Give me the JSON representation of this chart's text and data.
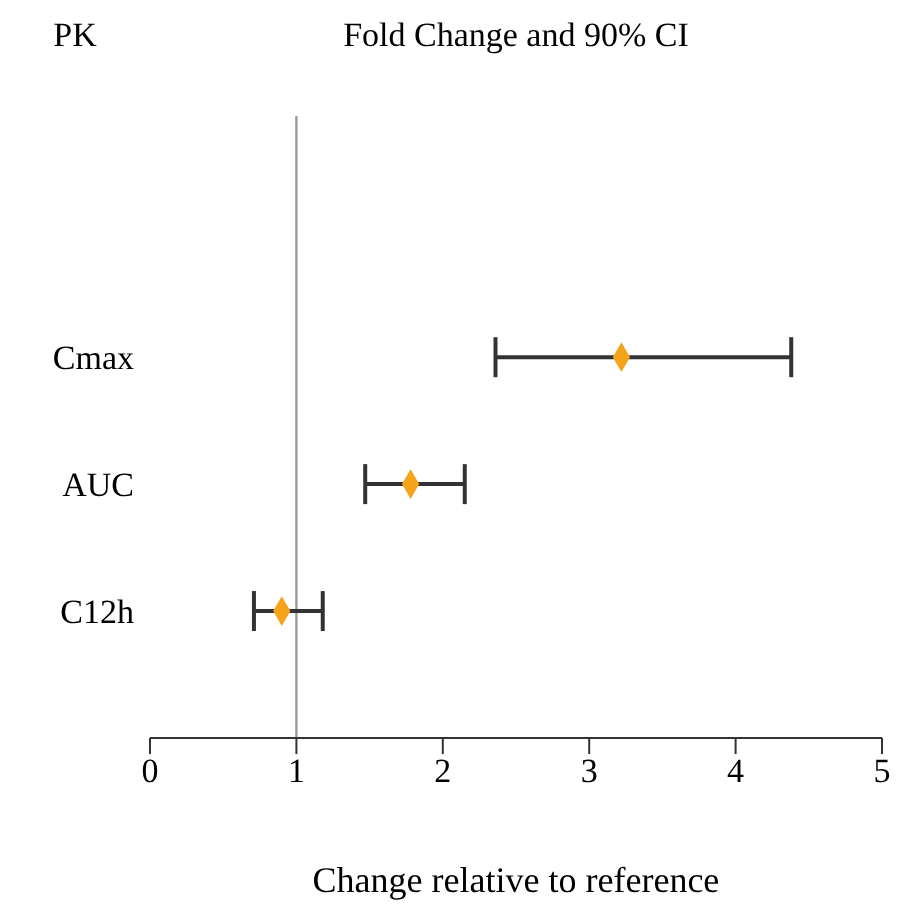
{
  "chart_data": {
    "type": "scatter",
    "title": "Fold Change and 90% CI",
    "annotations": [
      "PK"
    ],
    "xlabel": "Change relative to reference",
    "orientation": "horizontal",
    "categories": [
      "Cmax",
      "AUC",
      "C12h"
    ],
    "series": [
      {
        "color": "#f5a31a",
        "values": [
          3.22,
          1.78,
          0.9
        ],
        "errors": [
          [
            2.36,
            4.38
          ],
          [
            1.47,
            2.15
          ],
          [
            0.71,
            1.18
          ]
        ]
      }
    ],
    "xlim": [
      0,
      5
    ],
    "xticks": [
      0,
      1,
      2,
      3,
      4,
      5
    ],
    "ref_lines": [
      {
        "axis": "x",
        "value": 1,
        "color": "#999999"
      }
    ],
    "marker": "diamond",
    "grid": false,
    "legend": false
  }
}
